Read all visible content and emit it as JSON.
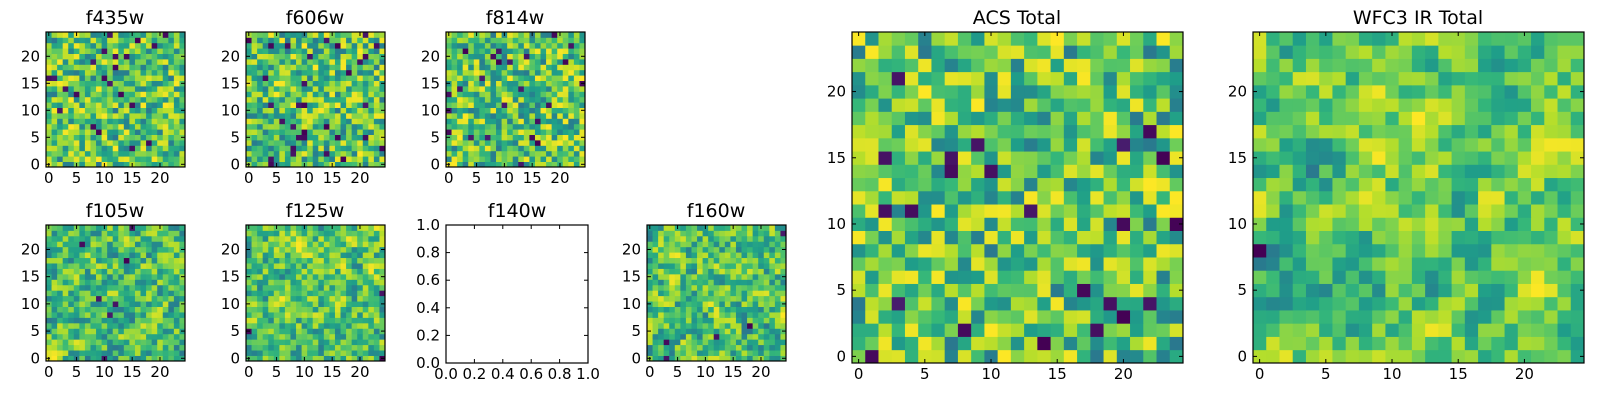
{
  "chart_data": [
    {
      "type": "heatmap",
      "title": "f435w",
      "colormap": "viridis",
      "grid_size": [
        25,
        25
      ],
      "xticks": [
        "0",
        "5",
        "10",
        "15",
        "20"
      ],
      "yticks": [
        "0",
        "5",
        "10",
        "15",
        "20"
      ],
      "seed": 11,
      "smooth": 0
    },
    {
      "type": "heatmap",
      "title": "f606w",
      "colormap": "viridis",
      "grid_size": [
        25,
        25
      ],
      "xticks": [
        "0",
        "5",
        "10",
        "15",
        "20"
      ],
      "yticks": [
        "0",
        "5",
        "10",
        "15",
        "20"
      ],
      "seed": 23,
      "smooth": 0
    },
    {
      "type": "heatmap",
      "title": "f814w",
      "colormap": "viridis",
      "grid_size": [
        25,
        25
      ],
      "xticks": [
        "0",
        "5",
        "10",
        "15",
        "20"
      ],
      "yticks": [
        "0",
        "5",
        "10",
        "15",
        "20"
      ],
      "seed": 37,
      "smooth": 0
    },
    {
      "type": "heatmap",
      "title": "f105w",
      "colormap": "viridis",
      "grid_size": [
        25,
        25
      ],
      "xticks": [
        "0",
        "5",
        "10",
        "15",
        "20"
      ],
      "yticks": [
        "0",
        "5",
        "10",
        "15",
        "20"
      ],
      "seed": 41,
      "smooth": 1
    },
    {
      "type": "heatmap",
      "title": "f125w",
      "colormap": "viridis",
      "grid_size": [
        25,
        25
      ],
      "xticks": [
        "0",
        "5",
        "10",
        "15",
        "20"
      ],
      "yticks": [
        "0",
        "5",
        "10",
        "15",
        "20"
      ],
      "seed": 53,
      "smooth": 1
    },
    {
      "type": "empty",
      "title": "f140w",
      "xticks": [
        "0.0",
        "0.2",
        "0.4",
        "0.6",
        "0.8",
        "1.0"
      ],
      "yticks": [
        "0.0",
        "0.2",
        "0.4",
        "0.6",
        "0.8",
        "1.0"
      ]
    },
    {
      "type": "heatmap",
      "title": "f160w",
      "colormap": "viridis",
      "grid_size": [
        25,
        25
      ],
      "xticks": [
        "0",
        "5",
        "10",
        "15",
        "20"
      ],
      "yticks": [
        "0",
        "5",
        "10",
        "15",
        "20"
      ],
      "seed": 67,
      "smooth": 1
    },
    {
      "type": "heatmap",
      "title": "ACS Total",
      "colormap": "viridis",
      "grid_size": [
        25,
        25
      ],
      "xticks": [
        "0",
        "5",
        "10",
        "15",
        "20"
      ],
      "yticks": [
        "0",
        "5",
        "10",
        "15",
        "20"
      ],
      "seed": 79,
      "smooth": 0
    },
    {
      "type": "heatmap",
      "title": "WFC3 IR Total",
      "colormap": "viridis",
      "grid_size": [
        25,
        25
      ],
      "xticks": [
        "0",
        "5",
        "10",
        "15",
        "20"
      ],
      "yticks": [
        "0",
        "5",
        "10",
        "15",
        "20"
      ],
      "seed": 97,
      "smooth": 2
    }
  ]
}
